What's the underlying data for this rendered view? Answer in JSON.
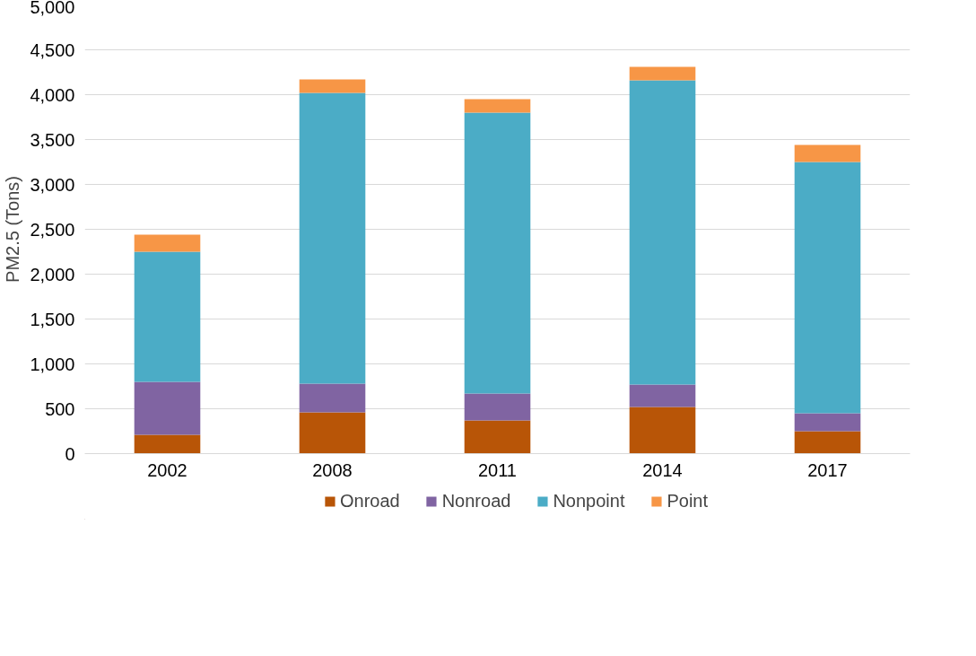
{
  "chart_data": {
    "type": "bar",
    "stacked": true,
    "ylabel": "PM2.5 (Tons)",
    "categories": [
      "2002",
      "2008",
      "2011",
      "2014",
      "2017"
    ],
    "series": [
      {
        "name": "Onroad",
        "color": "#b85507",
        "values": [
          210,
          460,
          370,
          520,
          250
        ]
      },
      {
        "name": "Nonroad",
        "color": "#8064a2",
        "values": [
          590,
          320,
          300,
          250,
          200
        ]
      },
      {
        "name": "Nonpoint",
        "color": "#4bacc6",
        "values": [
          1450,
          3240,
          3130,
          3390,
          2800
        ]
      },
      {
        "name": "Point",
        "color": "#f79646",
        "values": [
          190,
          150,
          150,
          150,
          190
        ]
      }
    ],
    "ylim": [
      0,
      5000
    ],
    "yticks": [
      {
        "value": 0,
        "label": "0"
      },
      {
        "value": 500,
        "label": "500"
      },
      {
        "value": 1000,
        "label": "1,000"
      },
      {
        "value": 1500,
        "label": "1,500"
      },
      {
        "value": 2000,
        "label": "2,000"
      },
      {
        "value": 2500,
        "label": "2,500"
      },
      {
        "value": 3000,
        "label": "3,000"
      },
      {
        "value": 3500,
        "label": "3,500"
      },
      {
        "value": 4000,
        "label": "4,000"
      },
      {
        "value": 4500,
        "label": "4,500"
      },
      {
        "value": 5000,
        "label": "5,000"
      }
    ],
    "grid": "y",
    "legend": "bottom"
  }
}
